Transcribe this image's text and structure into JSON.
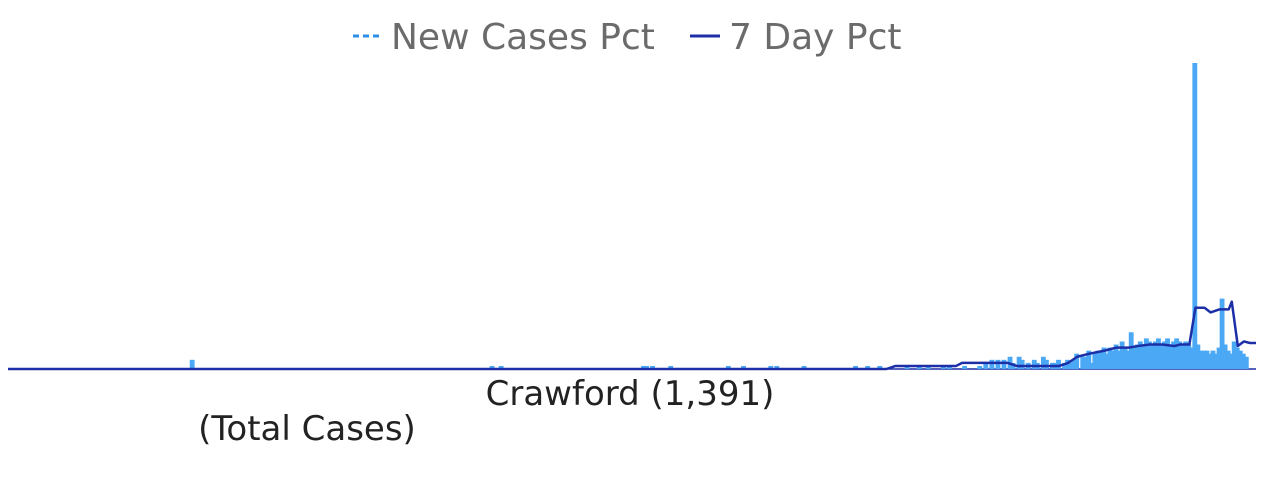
{
  "chart_data": {
    "type": "bar",
    "title": "Crawford (1,391)",
    "subtitle": "(Total Cases)",
    "xlabel": "",
    "ylabel": "",
    "grid": false,
    "legend_placement": "top-center",
    "ylim": [
      0,
      100
    ],
    "series": [
      {
        "name": "New Cases Pct",
        "kind": "bar",
        "color": "#4aa8f5",
        "points": [
          [
            60,
            3
          ],
          [
            159,
            1
          ],
          [
            162,
            1
          ],
          [
            209,
            1
          ],
          [
            210,
            1
          ],
          [
            212,
            1
          ],
          [
            218,
            1
          ],
          [
            237,
            1
          ],
          [
            242,
            1
          ],
          [
            251,
            1
          ],
          [
            253,
            1
          ],
          [
            262,
            1
          ],
          [
            279,
            1
          ],
          [
            283,
            1
          ],
          [
            287,
            1
          ],
          [
            296,
            1
          ],
          [
            300,
            1
          ],
          [
            303,
            1
          ],
          [
            308,
            1
          ],
          [
            310,
            1
          ],
          [
            315,
            1
          ],
          [
            320,
            1
          ],
          [
            322,
            2
          ],
          [
            324,
            3
          ],
          [
            326,
            3
          ],
          [
            328,
            3
          ],
          [
            330,
            4
          ],
          [
            331,
            2
          ],
          [
            333,
            4
          ],
          [
            334,
            3
          ],
          [
            336,
            2
          ],
          [
            338,
            3
          ],
          [
            339,
            2
          ],
          [
            341,
            4
          ],
          [
            342,
            3
          ],
          [
            344,
            2
          ],
          [
            345,
            2
          ],
          [
            346,
            3
          ],
          [
            348,
            2
          ],
          [
            349,
            3
          ],
          [
            350,
            2
          ],
          [
            351,
            3
          ],
          [
            352,
            5
          ],
          [
            354,
            4
          ],
          [
            355,
            4
          ],
          [
            356,
            6
          ],
          [
            357,
            2
          ],
          [
            358,
            5
          ],
          [
            359,
            6
          ],
          [
            360,
            6
          ],
          [
            361,
            7
          ],
          [
            362,
            5
          ],
          [
            363,
            7
          ],
          [
            364,
            6
          ],
          [
            365,
            8
          ],
          [
            366,
            6
          ],
          [
            367,
            9
          ],
          [
            368,
            7
          ],
          [
            369,
            6
          ],
          [
            370,
            12
          ],
          [
            371,
            7
          ],
          [
            372,
            8
          ],
          [
            373,
            9
          ],
          [
            374,
            8
          ],
          [
            375,
            10
          ],
          [
            376,
            9
          ],
          [
            377,
            8
          ],
          [
            378,
            9
          ],
          [
            379,
            10
          ],
          [
            380,
            8
          ],
          [
            381,
            9
          ],
          [
            382,
            10
          ],
          [
            383,
            8
          ],
          [
            384,
            9
          ],
          [
            385,
            10
          ],
          [
            386,
            9
          ],
          [
            387,
            8
          ],
          [
            388,
            9
          ],
          [
            389,
            8
          ],
          [
            390,
            7
          ],
          [
            391,
            100
          ],
          [
            392,
            8
          ],
          [
            393,
            6
          ],
          [
            394,
            6
          ],
          [
            395,
            6
          ],
          [
            396,
            5
          ],
          [
            397,
            6
          ],
          [
            398,
            5
          ],
          [
            399,
            7
          ],
          [
            400,
            23
          ],
          [
            401,
            8
          ],
          [
            402,
            6
          ],
          [
            403,
            5
          ],
          [
            404,
            9
          ],
          [
            405,
            7
          ],
          [
            406,
            6
          ],
          [
            407,
            5
          ],
          [
            408,
            4
          ]
        ]
      },
      {
        "name": "7 Day Pct",
        "kind": "line",
        "color": "#1c2fa6",
        "points": [
          [
            0,
            0
          ],
          [
            290,
            0
          ],
          [
            293,
            1
          ],
          [
            313,
            1
          ],
          [
            315,
            2
          ],
          [
            330,
            2
          ],
          [
            333,
            1
          ],
          [
            347,
            1
          ],
          [
            350,
            2
          ],
          [
            353,
            4
          ],
          [
            357,
            5
          ],
          [
            362,
            6
          ],
          [
            366,
            7
          ],
          [
            370,
            7
          ],
          [
            373,
            7.5
          ],
          [
            377,
            8
          ],
          [
            381,
            8
          ],
          [
            385,
            7.5
          ],
          [
            387,
            8
          ],
          [
            390,
            8
          ],
          [
            392,
            20
          ],
          [
            395,
            20
          ],
          [
            397,
            18.5
          ],
          [
            400,
            19.5
          ],
          [
            403,
            19.5
          ],
          [
            404,
            22
          ],
          [
            406,
            7.5
          ],
          [
            408,
            9
          ],
          [
            410,
            8.5
          ],
          [
            412,
            8.5
          ]
        ]
      }
    ]
  },
  "legend": {
    "items": [
      {
        "label": "New Cases Pct",
        "color": "#2d8ee6",
        "style": "dashed"
      },
      {
        "label": "7 Day Pct",
        "color": "#1c2fa6",
        "style": "solid"
      }
    ]
  }
}
